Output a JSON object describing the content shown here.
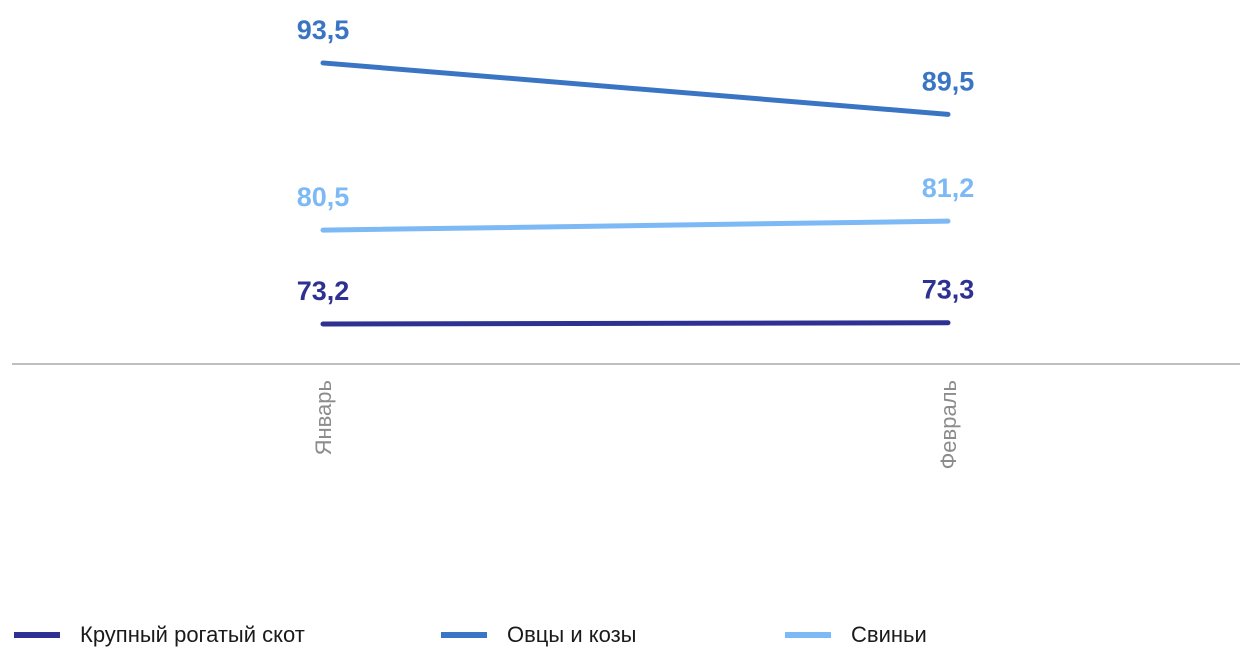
{
  "chart_data": {
    "type": "line",
    "categories": [
      "Январь",
      "Февраль"
    ],
    "series": [
      {
        "name": "Крупный рогатый скот",
        "values": [
          73.2,
          73.3
        ],
        "labels": [
          "73,2",
          "73,3"
        ],
        "color": "#2e3192"
      },
      {
        "name": "Овцы и козы",
        "values": [
          93.5,
          89.5
        ],
        "labels": [
          "93,5",
          "89,5"
        ],
        "color": "#3a75c4"
      },
      {
        "name": "Свиньи",
        "values": [
          80.5,
          81.2
        ],
        "labels": [
          "80,5",
          "81,2"
        ],
        "color": "#7db9f5"
      }
    ],
    "axis_color": "#bfbfbf",
    "legend_position": "bottom",
    "grid": false
  }
}
